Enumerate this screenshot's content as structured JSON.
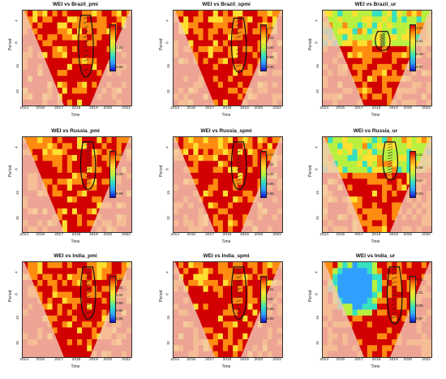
{
  "colors": {
    "high": "#c60000",
    "mid": "#ffdd33",
    "low": "#0000c8",
    "coi": "#f3c8b5"
  },
  "chart_data": [
    {
      "type": "heatmap",
      "title": "WEI  vs  Brazil_pmi",
      "xlabel": "Time",
      "ylabel": "Period",
      "xticks": [
        "2014",
        "2015",
        "2017",
        "2018",
        "2019",
        "2020",
        "2022"
      ],
      "yticks": [
        "4",
        "8",
        "16",
        "32"
      ],
      "colorbar_ticks": [
        "1.01",
        "1.00",
        "0.99"
      ],
      "colorbar_range": [
        0.985,
        1.015
      ],
      "pattern": "hot",
      "sig_x": 0.58,
      "sig_top": 0.05,
      "sig_bottom": 0.7
    },
    {
      "type": "heatmap",
      "title": "WEI  vs  Brazil_spmi",
      "xlabel": "Time",
      "ylabel": "Period",
      "xticks": [
        "2014",
        "2015",
        "2017",
        "2018",
        "2019",
        "2020",
        "2022"
      ],
      "yticks": [
        "4",
        "8",
        "16",
        "32"
      ],
      "colorbar_ticks": [
        "1.01",
        "1.01",
        "1.00",
        "0.99",
        "0.99"
      ],
      "colorbar_range": [
        0.985,
        1.015
      ],
      "pattern": "hot",
      "sig_x": 0.6,
      "sig_top": 0.08,
      "sig_bottom": 0.65
    },
    {
      "type": "heatmap",
      "title": "WEI  vs  Brazil_ur",
      "xlabel": "Time",
      "ylabel": "Period",
      "xticks": [
        "2014",
        "2015",
        "2017",
        "2018",
        "2019",
        "2020",
        "2022"
      ],
      "yticks": [
        "4",
        "8",
        "16",
        "32"
      ],
      "colorbar_ticks": [
        "1.03",
        "1.01",
        "0.99",
        "0.97"
      ],
      "colorbar_range": [
        0.96,
        1.04
      ],
      "pattern": "cool_top",
      "sig_x": 0.55,
      "sig_top": 0.22,
      "sig_bottom": 0.42
    },
    {
      "type": "heatmap",
      "title": "WEI  vs  Russia_pmi",
      "xlabel": "Time",
      "ylabel": "Period",
      "xticks": [
        "2014",
        "2015",
        "2017",
        "2018",
        "2019",
        "2020",
        "2022"
      ],
      "yticks": [
        "4",
        "8",
        "16",
        "32"
      ],
      "colorbar_ticks": [
        "1.01",
        "1.00",
        "0.99"
      ],
      "colorbar_range": [
        0.985,
        1.015
      ],
      "pattern": "hot",
      "sig_x": 0.6,
      "sig_top": 0.05,
      "sig_bottom": 0.55
    },
    {
      "type": "heatmap",
      "title": "WEI  vs  Russia_spmi",
      "xlabel": "Time",
      "ylabel": "Period",
      "xticks": [
        "2014",
        "2015",
        "2017",
        "2018",
        "2019",
        "2020",
        "2022"
      ],
      "yticks": [
        "4",
        "8",
        "16",
        "32"
      ],
      "colorbar_ticks": [
        "1.01",
        "1.01",
        "1.00",
        "0.99",
        "0.99"
      ],
      "colorbar_range": [
        0.985,
        1.015
      ],
      "pattern": "hot",
      "sig_x": 0.6,
      "sig_top": 0.05,
      "sig_bottom": 0.55
    },
    {
      "type": "heatmap",
      "title": "WEI  vs  Russia_ur",
      "xlabel": "Time",
      "ylabel": "Period",
      "xticks": [
        "2014",
        "2015",
        "2017",
        "2018",
        "2019",
        "2020",
        "2022"
      ],
      "yticks": [
        "4",
        "8",
        "16",
        "32"
      ],
      "colorbar_ticks": [
        "1.01",
        "0.99",
        "0.97",
        "0.93"
      ],
      "colorbar_range": [
        0.92,
        1.02
      ],
      "pattern": "cool_top",
      "sig_x": 0.62,
      "sig_top": 0.05,
      "sig_bottom": 0.45
    },
    {
      "type": "heatmap",
      "title": "WEI  vs  India_pmi",
      "xlabel": "Time",
      "ylabel": "Period",
      "xticks": [
        "2014",
        "2015",
        "2017",
        "2018",
        "2019",
        "2020",
        "2022"
      ],
      "yticks": [
        "4",
        "8",
        "16",
        "32"
      ],
      "colorbar_ticks": [
        "1.02",
        "1.01",
        "1.00",
        "0.99",
        "0.98",
        "0.96"
      ],
      "colorbar_range": [
        0.955,
        1.025
      ],
      "pattern": "hot",
      "sig_x": 0.6,
      "sig_top": 0.05,
      "sig_bottom": 0.6
    },
    {
      "type": "heatmap",
      "title": "WEI  vs  India_spmi",
      "xlabel": "Time",
      "ylabel": "Period",
      "xticks": [
        "2014",
        "2015",
        "2017",
        "2018",
        "2019",
        "2020",
        "2022"
      ],
      "yticks": [
        "4",
        "8",
        "16",
        "32"
      ],
      "colorbar_ticks": [
        "1.01",
        "1.01",
        "1.00",
        "0.99",
        "0.99"
      ],
      "colorbar_range": [
        0.985,
        1.015
      ],
      "pattern": "hot",
      "sig_x": 0.6,
      "sig_top": 0.05,
      "sig_bottom": 0.6
    },
    {
      "type": "heatmap",
      "title": "WEI  vs  India_ur",
      "xlabel": "Time",
      "ylabel": "Period",
      "xticks": [
        "2014",
        "2015",
        "2017",
        "2018",
        "2019",
        "2020",
        "2022"
      ],
      "yticks": [
        "4",
        "8",
        "16",
        "32"
      ],
      "colorbar_ticks": [
        "1.03",
        "1.01",
        "0.99",
        "0.97"
      ],
      "colorbar_range": [
        0.96,
        1.04
      ],
      "pattern": "blue_hole",
      "sig_x": 0.66,
      "sig_top": 0.05,
      "sig_bottom": 0.65
    }
  ]
}
